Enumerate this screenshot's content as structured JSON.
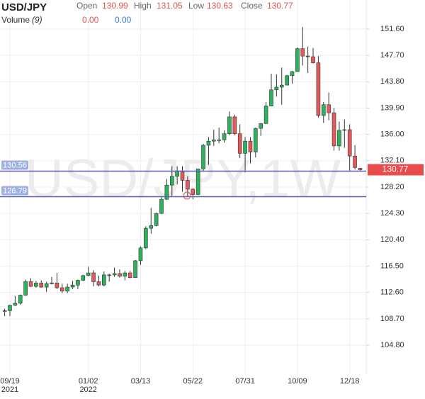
{
  "chart_data": {
    "type": "candlestick",
    "title": "USD/JPY",
    "ohlc_labels": [
      "Open",
      "High",
      "Low",
      "Close"
    ],
    "ohlc_values": [
      130.99,
      131.05,
      130.63,
      130.77
    ],
    "volume_label": "Volume",
    "volume_period": "(9)",
    "volume_values": [
      {
        "value": 0,
        "label": "0.00"
      },
      {
        "value": 0,
        "label": "0.00"
      }
    ],
    "watermark": "USD/JPY,1W",
    "up_color": "#2bb35c",
    "down_color": "#e45a5a",
    "grid": true,
    "categories": [
      null,
      "09/19",
      null,
      null,
      null,
      null,
      null,
      null,
      null,
      null,
      null,
      null,
      null,
      null,
      null,
      null,
      "01/02",
      null,
      null,
      null,
      null,
      null,
      null,
      null,
      null,
      null,
      "03/13",
      null,
      null,
      null,
      null,
      null,
      null,
      null,
      null,
      null,
      "05/22",
      null,
      null,
      null,
      null,
      null,
      null,
      null,
      null,
      null,
      "07/31",
      null,
      null,
      null,
      null,
      null,
      null,
      null,
      null,
      null,
      "10/09",
      null,
      null,
      null,
      null,
      null,
      null,
      null,
      null,
      null,
      "12/18",
      null,
      null
    ],
    "year_labels": [
      null,
      "2021",
      null,
      null,
      null,
      null,
      null,
      null,
      null,
      null,
      null,
      null,
      null,
      null,
      null,
      null,
      "2022",
      null,
      null,
      null,
      null,
      null,
      null,
      null,
      null,
      null,
      null,
      null,
      null,
      null,
      null,
      null,
      null,
      null,
      null,
      null,
      null,
      null,
      null,
      null,
      null,
      null,
      null,
      null,
      null,
      null,
      null,
      null,
      null,
      null,
      null,
      null,
      null,
      null,
      null,
      null,
      null,
      null,
      null,
      null,
      null,
      null,
      null,
      null,
      null,
      null,
      null,
      null,
      null
    ],
    "open": [
      109.9,
      109.9,
      110.7,
      111.0,
      112.2,
      114.2,
      113.5,
      114.0,
      113.4,
      113.9,
      114.0,
      113.3,
      112.8,
      113.4,
      113.7,
      114.4,
      115.1,
      115.5,
      114.2,
      113.7,
      115.2,
      115.2,
      115.4,
      115.0,
      115.5,
      114.8,
      117.3,
      119.2,
      122.1,
      122.5,
      124.3,
      126.4,
      128.5,
      129.8,
      130.6,
      129.2,
      127.9,
      127.1,
      130.9,
      134.4,
      135.0,
      135.2,
      135.2,
      136.1,
      138.6,
      136.1,
      133.2,
      135.0,
      133.4,
      136.9,
      137.6,
      140.2,
      142.6,
      143.0,
      143.3,
      144.7,
      145.3,
      148.7,
      147.6,
      147.5,
      146.6,
      138.8,
      140.4,
      139.2,
      134.3,
      136.6,
      136.7,
      132.8,
      130.99
    ],
    "high": [
      110.2,
      110.8,
      112.1,
      112.3,
      114.5,
      114.7,
      114.3,
      114.4,
      114.2,
      114.9,
      115.5,
      113.9,
      113.9,
      114.3,
      114.5,
      115.2,
      116.4,
      115.9,
      115.1,
      115.7,
      115.4,
      116.3,
      116.0,
      115.8,
      115.8,
      117.4,
      119.4,
      122.4,
      125.1,
      124.4,
      126.7,
      129.4,
      131.3,
      131.3,
      131.3,
      129.8,
      128.0,
      130.9,
      134.6,
      135.6,
      136.7,
      137.0,
      136.6,
      139.4,
      138.9,
      137.5,
      135.6,
      135.6,
      137.0,
      137.7,
      140.8,
      144.99,
      144.9,
      145.9,
      144.8,
      145.4,
      148.9,
      151.9,
      149.0,
      148.8,
      147.6,
      140.8,
      142.2,
      139.9,
      137.9,
      138.2,
      137.5,
      134.4,
      131.05
    ],
    "low": [
      109.1,
      109.1,
      110.6,
      110.8,
      112.1,
      113.4,
      113.3,
      113.3,
      112.7,
      113.8,
      113.1,
      112.5,
      112.5,
      113.1,
      113.1,
      114.3,
      115.0,
      113.5,
      113.5,
      113.5,
      114.2,
      114.9,
      114.8,
      114.4,
      114.7,
      114.8,
      116.7,
      119.0,
      121.3,
      122.4,
      124.2,
      126.3,
      126.9,
      128.6,
      127.5,
      126.9,
      126.4,
      127.0,
      130.6,
      131.5,
      134.3,
      134.7,
      134.8,
      135.9,
      135.9,
      132.5,
      130.4,
      131.7,
      132.6,
      135.8,
      137.6,
      140.2,
      141.6,
      140.4,
      143.3,
      143.5,
      145.3,
      146.2,
      145.1,
      146.5,
      138.5,
      137.7,
      138.1,
      133.6,
      133.6,
      134.0,
      130.6,
      130.8,
      130.63
    ],
    "close": [
      109.9,
      110.7,
      111.0,
      112.2,
      114.2,
      113.5,
      114.0,
      113.4,
      113.9,
      114.0,
      113.3,
      112.8,
      113.4,
      113.7,
      114.4,
      115.1,
      115.5,
      114.2,
      113.7,
      115.2,
      115.2,
      115.4,
      115.0,
      115.5,
      114.8,
      117.3,
      119.2,
      122.1,
      122.5,
      124.3,
      126.4,
      128.5,
      129.8,
      130.6,
      129.2,
      127.9,
      127.1,
      130.9,
      134.4,
      135.0,
      135.2,
      135.2,
      136.1,
      138.6,
      136.1,
      133.2,
      135.0,
      133.4,
      136.9,
      137.6,
      140.2,
      142.6,
      143.0,
      143.3,
      144.7,
      145.3,
      148.7,
      147.6,
      147.5,
      146.6,
      138.8,
      140.4,
      139.2,
      134.3,
      136.6,
      136.7,
      132.8,
      131.1,
      130.77
    ],
    "ylim": [
      100.5,
      155.9
    ],
    "yticks": [
      {
        "value": 151.6,
        "label": "151.60"
      },
      {
        "value": 147.7,
        "label": "147.70"
      },
      {
        "value": 143.8,
        "label": "143.80"
      },
      {
        "value": 139.9,
        "label": "139.90"
      },
      {
        "value": 136,
        "label": "136.00"
      },
      {
        "value": 132.1,
        "label": "132.10"
      },
      {
        "value": 128.2,
        "label": "128.20"
      },
      {
        "value": 124.3,
        "label": "124.30"
      },
      {
        "value": 120.4,
        "label": "120.40"
      },
      {
        "value": 116.5,
        "label": "116.50"
      },
      {
        "value": 112.6,
        "label": "112.60"
      },
      {
        "value": 108.7,
        "label": "108.70"
      },
      {
        "value": 104.8,
        "label": "104.80"
      }
    ],
    "hlines": [
      {
        "value": 130.56,
        "color": "#5b5fb0"
      },
      {
        "value": 126.79,
        "color": "#5b5fb0"
      }
    ],
    "last_price": 130.77,
    "last_price_color": "#e84c4c"
  }
}
